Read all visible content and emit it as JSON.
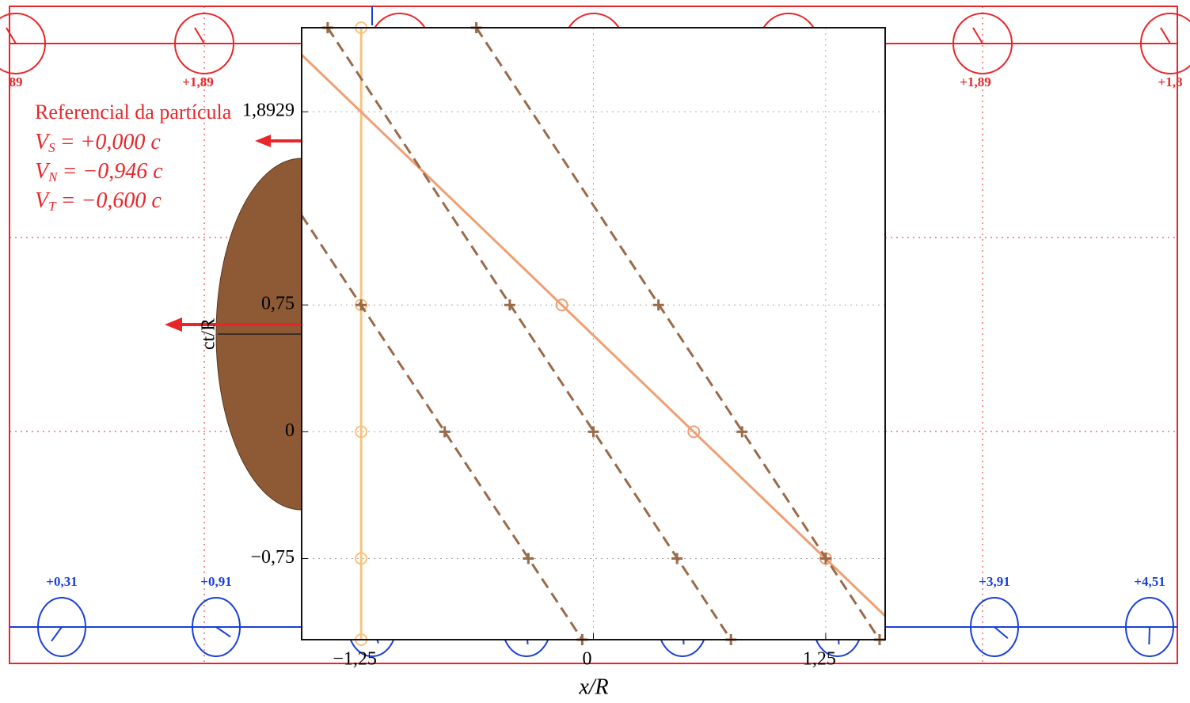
{
  "header": {
    "frame_label": "Referencial da partícula",
    "velocities": [
      {
        "symbol": "V",
        "sub": "S",
        "text": "= +0,000 c"
      },
      {
        "symbol": "V",
        "sub": "N",
        "text": "= −0,946 c"
      },
      {
        "symbol": "V",
        "sub": "T",
        "text": "= −0,600 c"
      }
    ]
  },
  "top_clocks": {
    "labels": [
      "89",
      "+1,89",
      "+1,89",
      "+1,8"
    ]
  },
  "bottom_clocks": {
    "labels": [
      "+0,31",
      "+0,91",
      "+3,91",
      "+4,51"
    ]
  },
  "plot": {
    "xlabel": "x/R",
    "ylabel": "ct/R",
    "xlim": [
      -1.57,
      1.57
    ],
    "ylim": [
      -1.23,
      2.39
    ],
    "xticks": [
      {
        "value": -1.25,
        "label": "−1,25"
      },
      0,
      {
        "value": 1.25,
        "label": "1,25"
      }
    ],
    "yticks": [
      {
        "value": -0.75,
        "label": "−0,75"
      },
      0,
      {
        "value": 0.75,
        "label": "0,75"
      },
      {
        "value": 1.8929,
        "label": "1,8929"
      }
    ],
    "grid": true,
    "lines": [
      {
        "color": "#f7c27e",
        "dashed": false,
        "marker": "o",
        "x": [
          -1.25,
          -1.25
        ],
        "y": [
          2.39,
          -1.23
        ],
        "marker_x": [
          -1.25,
          -1.25,
          -1.25,
          -1.25,
          -1.25
        ],
        "marker_y": [
          2.39,
          0.75,
          0,
          -0.75,
          -1.23
        ]
      },
      {
        "color": "#ef9f72",
        "dashed": false,
        "marker": "o",
        "x": [
          -1.57,
          1.57
        ],
        "y": [
          2.23,
          -1.09
        ],
        "marker_x": [
          -0.17,
          0.54,
          1.25
        ],
        "marker_y": [
          0.75,
          0,
          -0.75
        ]
      },
      {
        "color": "#9a6a4a",
        "dashed": true,
        "marker": "+",
        "x": [
          -1.57,
          -0.06
        ],
        "y": [
          1.28,
          -1.23
        ],
        "marker_x": [
          -1.25,
          -0.8,
          -0.35,
          -0.06
        ],
        "marker_y": [
          0.75,
          0,
          -0.75,
          -1.23
        ]
      },
      {
        "color": "#9a6a4a",
        "dashed": true,
        "marker": "+",
        "x": [
          -1.43,
          0.74
        ],
        "y": [
          2.39,
          -1.23
        ],
        "marker_x": [
          -1.43,
          -0.45,
          0,
          0.45,
          0.74
        ],
        "marker_y": [
          2.39,
          0.75,
          0,
          -0.75,
          -1.23
        ]
      },
      {
        "color": "#9a6a4a",
        "dashed": true,
        "marker": "+",
        "x": [
          -0.63,
          1.54
        ],
        "y": [
          2.39,
          -1.23
        ],
        "marker_x": [
          -0.63,
          0.35,
          0.8,
          1.25,
          1.54
        ],
        "marker_y": [
          2.39,
          0.75,
          0,
          -0.75,
          -1.23
        ]
      }
    ]
  }
}
